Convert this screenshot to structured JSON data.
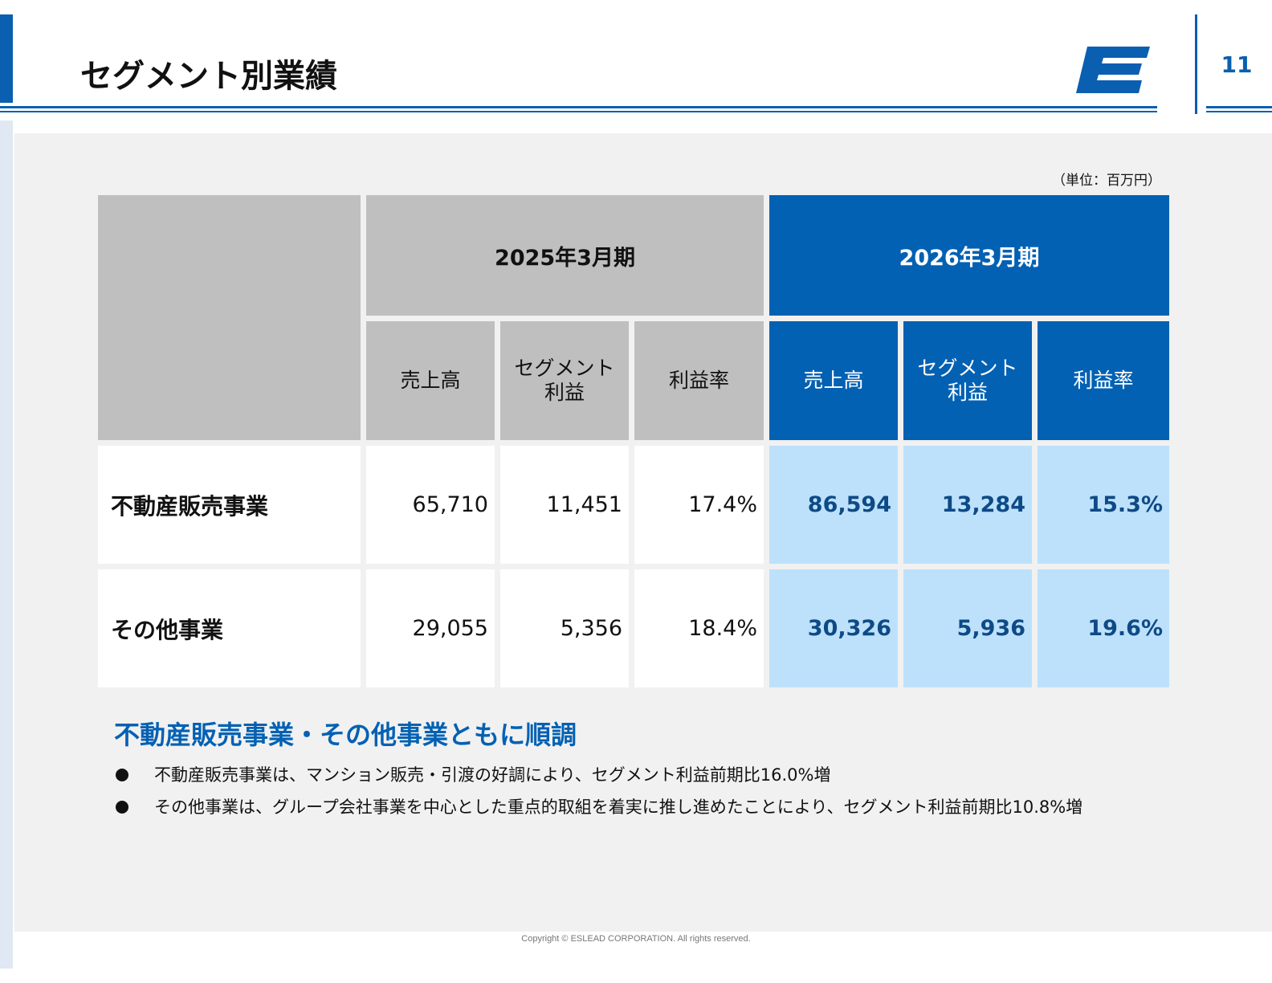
{
  "header": {
    "title": "セグメント別業績",
    "page_number": "11",
    "logo_icon": "eslead-e-logo-icon",
    "accent_color": "#0a5fb0"
  },
  "table": {
    "unit": "（単位：百万円）",
    "periods": [
      {
        "label": "2025年3月期"
      },
      {
        "label": "2026年3月期"
      }
    ],
    "columns": {
      "sales": "売上高",
      "profit_line1": "セグメント",
      "profit_line2": "利益",
      "margin": "利益率"
    },
    "rows": [
      {
        "label": "不動産販売事業",
        "prev": [
          "65,710",
          "11,451",
          "17.4%"
        ],
        "curr": [
          "86,594",
          "13,284",
          "15.3%"
        ]
      },
      {
        "label": "その他事業",
        "prev": [
          "29,055",
          "5,356",
          "18.4%"
        ],
        "curr": [
          "30,326",
          "5,936",
          "19.6%"
        ]
      }
    ],
    "colors": {
      "gray": "#bfbfbf",
      "blue": "#0361b3",
      "light_blue": "#bde1fb"
    }
  },
  "summary": {
    "headline": "不動産販売事業・その他事業ともに順調",
    "bullets": [
      "不動産販売事業は、マンション販売・引渡の好調により、セグメント利益前期比16.0%増",
      "その他事業は、グループ会社事業を中心とした重点的取組を着実に推し進めたことにより、セグメント利益前期比10.8%増"
    ]
  },
  "footer": {
    "copyright": "Copyright © ESLEAD CORPORATION. All rights reserved."
  }
}
